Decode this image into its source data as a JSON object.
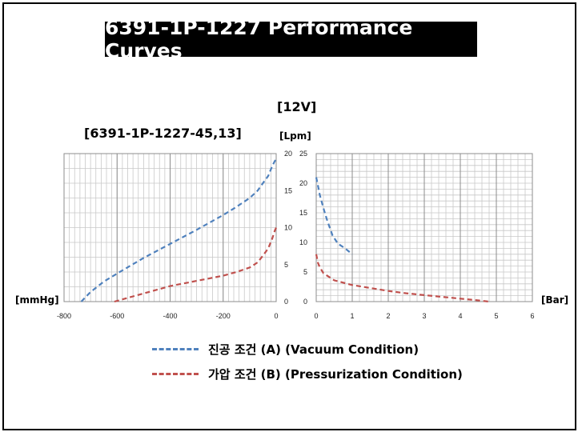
{
  "page": {
    "title": "6391-1P-1227  Performance Curves",
    "voltage_label": "[12V]",
    "model_label": "[6391-1P-1227-45,13]",
    "left_axis_unit": "[mmHg]",
    "right_axis_unit": "[Bar]",
    "flow_unit": "[Lpm]"
  },
  "legend": [
    {
      "label": "진공 조건 (A) (Vacuum Condition)",
      "color": "#4f81bd"
    },
    {
      "label": "가압 조건 (B) (Pressurization Condition)",
      "color": "#c0504d"
    }
  ],
  "chart_data": [
    {
      "type": "line",
      "xlabel": "[mmHg]",
      "ylabel": "[Lpm]",
      "xlim": [
        -800,
        0
      ],
      "ylim": [
        0,
        20
      ],
      "x_ticks": [
        "-800",
        "-600",
        "-400",
        "-200",
        "0"
      ],
      "y_ticks": [
        "0",
        "5",
        "10",
        "15",
        "20"
      ],
      "grid": true,
      "series": [
        {
          "name": "진공 조건 (A) (Vacuum Condition)",
          "color": "#4f81bd",
          "x": [
            -735,
            -700,
            -650,
            -600,
            -500,
            -400,
            -300,
            -200,
            -150,
            -100,
            -70,
            -50,
            -30,
            -15,
            -5,
            0
          ],
          "y": [
            0,
            1.3,
            2.7,
            3.8,
            5.9,
            7.8,
            9.7,
            11.7,
            12.8,
            14.0,
            15.0,
            16.0,
            17.0,
            18.3,
            19.0,
            19.2
          ]
        },
        {
          "name": "가압 조건 (B) (Pressurization Condition)",
          "color": "#c0504d",
          "x": [
            -610,
            -500,
            -400,
            -300,
            -200,
            -150,
            -100,
            -70,
            -50,
            -30,
            -15,
            -5,
            0
          ],
          "y": [
            0,
            1.1,
            2.1,
            2.8,
            3.5,
            4.0,
            4.6,
            5.3,
            6.2,
            7.2,
            8.5,
            9.6,
            10.0
          ]
        }
      ]
    },
    {
      "type": "line",
      "xlabel": "[Bar]",
      "ylabel": "",
      "xlim": [
        0,
        6
      ],
      "ylim": [
        0,
        25
      ],
      "x_ticks": [
        "0",
        "1",
        "2",
        "3",
        "4",
        "5",
        "6"
      ],
      "y_ticks": [
        "0",
        "5",
        "10",
        "15",
        "20",
        "25"
      ],
      "grid": true,
      "series": [
        {
          "name": "진공 조건 (A) (Vacuum Condition)",
          "color": "#4f81bd",
          "x": [
            0,
            0.05,
            0.1,
            0.2,
            0.3,
            0.45,
            0.6,
            0.8,
            1.0
          ],
          "y": [
            21,
            19.5,
            18,
            15.8,
            13.8,
            11.2,
            9.8,
            9,
            8
          ]
        },
        {
          "name": "가압 조건 (B) (Pressurization Condition)",
          "color": "#c0504d",
          "x": [
            0,
            0.05,
            0.1,
            0.2,
            0.5,
            1.0,
            1.5,
            2.0,
            2.5,
            3.0,
            3.5,
            4.0,
            4.5,
            4.8
          ],
          "y": [
            8,
            6.5,
            5.8,
            4.8,
            3.6,
            2.8,
            2.3,
            1.8,
            1.4,
            1.1,
            0.8,
            0.5,
            0.2,
            0
          ]
        }
      ]
    }
  ]
}
